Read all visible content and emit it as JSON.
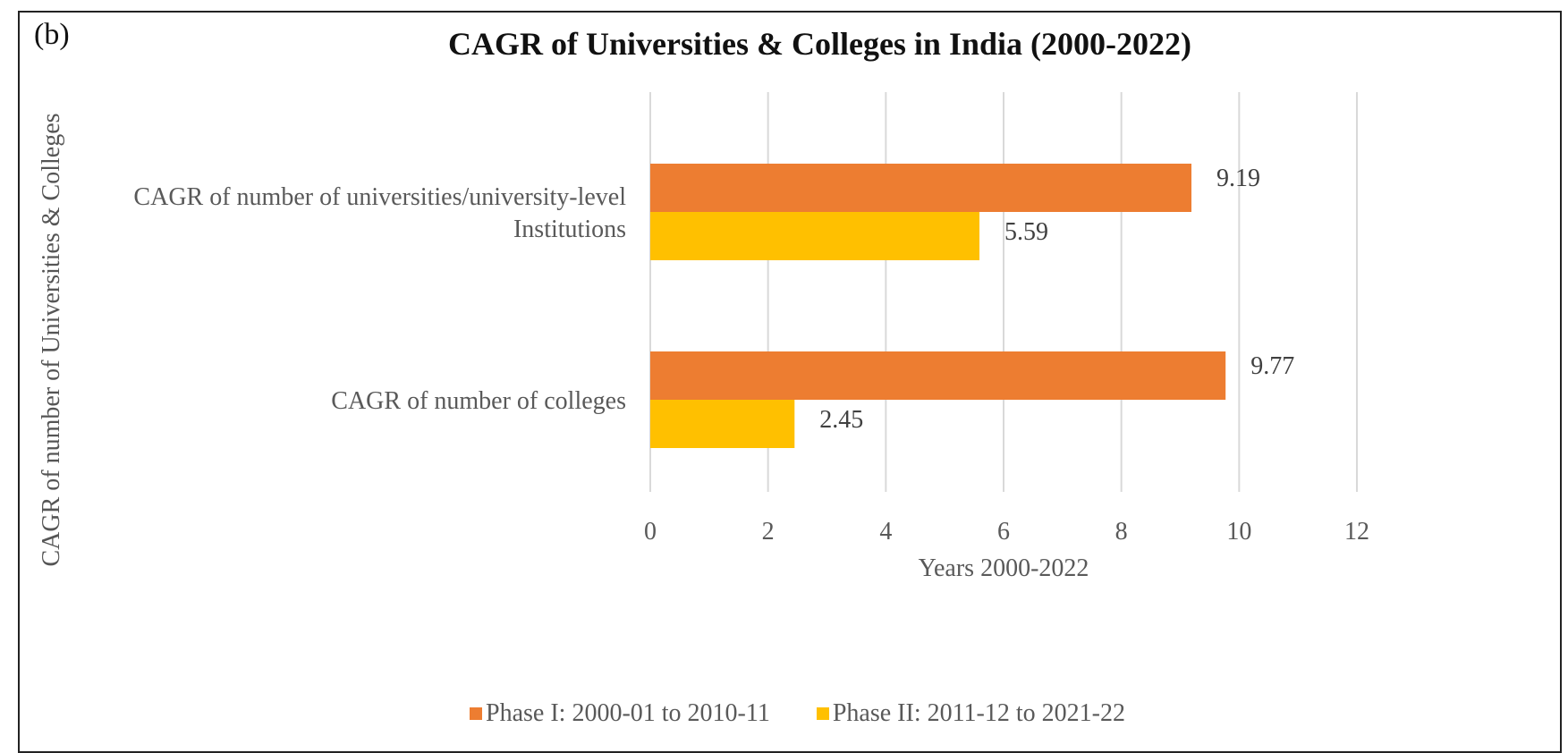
{
  "chart_data": {
    "type": "bar",
    "orientation": "horizontal",
    "panel_label": "(b)",
    "title": "CAGR of Universities & Colleges in India (2000-2022)",
    "xlabel": "Years 2000-2022",
    "ylabel": "CAGR of number of Universities & Colleges",
    "categories": [
      "CAGR of number of universities/university-level Institutions",
      "CAGR of number of colleges"
    ],
    "category_lines": [
      [
        "CAGR of number of universities/university-level",
        "Institutions"
      ],
      [
        "CAGR of number of colleges"
      ]
    ],
    "series": [
      {
        "name": "Phase I: 2000-01 to 2010-11",
        "color": "#ED7D31",
        "values": [
          9.19,
          9.77
        ],
        "labels": [
          "9.19",
          "9.77"
        ]
      },
      {
        "name": "Phase II: 2011-12 to 2021-22",
        "color": "#FFC000",
        "values": [
          5.59,
          2.45
        ],
        "labels": [
          "5.59",
          "2.45"
        ]
      }
    ],
    "xlim": [
      0,
      12
    ],
    "xticks": [
      "0",
      "2",
      "4",
      "6",
      "8",
      "10",
      "12"
    ],
    "grid": true,
    "legend": "bottom"
  }
}
